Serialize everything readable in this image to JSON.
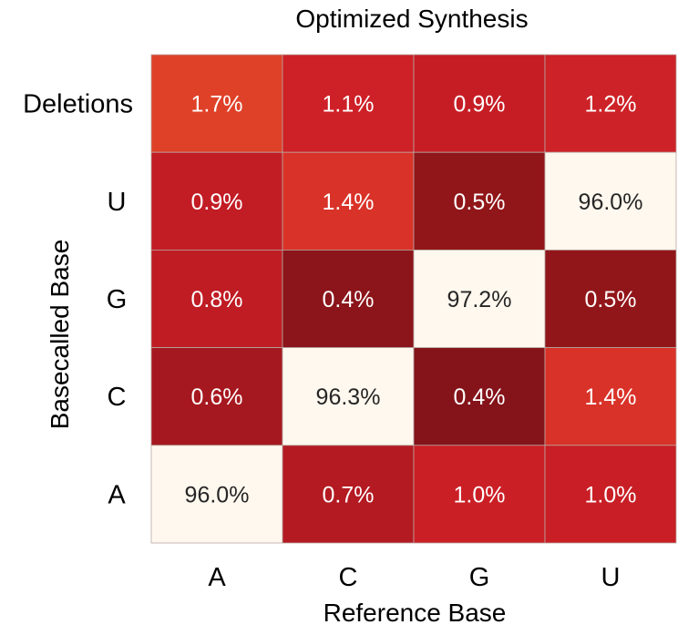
{
  "chart_data": {
    "type": "heatmap",
    "title": "Optimized Synthesis",
    "xlabel": "Reference Base",
    "ylabel": "Basecalled Base",
    "x_categories": [
      "A",
      "C",
      "G",
      "U"
    ],
    "y_categories": [
      "Deletions",
      "U",
      "G",
      "C",
      "A"
    ],
    "values": [
      [
        1.7,
        1.1,
        0.9,
        1.2
      ],
      [
        0.9,
        1.4,
        0.5,
        96.0
      ],
      [
        0.8,
        0.4,
        97.2,
        0.5
      ],
      [
        0.6,
        96.3,
        0.4,
        1.4
      ],
      [
        96.0,
        0.7,
        1.0,
        1.0
      ]
    ],
    "value_labels": [
      [
        "1.7%",
        "1.1%",
        "0.9%",
        "1.2%"
      ],
      [
        "0.9%",
        "1.4%",
        "0.5%",
        "96.0%"
      ],
      [
        "0.8%",
        "0.4%",
        "97.2%",
        "0.5%"
      ],
      [
        "0.6%",
        "96.3%",
        "0.4%",
        "1.4%"
      ],
      [
        "96.0%",
        "0.7%",
        "1.0%",
        "1.0%"
      ]
    ],
    "cell_colors": [
      [
        "#df4128",
        "#cd2127",
        "#c61d25",
        "#cd2227"
      ],
      [
        "#c21c25",
        "#d93228",
        "#911619",
        "#fff8ee"
      ],
      [
        "#bf1c24",
        "#8b151a",
        "#fff8ee",
        "#911619"
      ],
      [
        "#a6181f",
        "#fff8ee",
        "#84131a",
        "#d93228"
      ],
      [
        "#fff8ee",
        "#b41a22",
        "#cb1f26",
        "#c91e25"
      ]
    ],
    "colorbar": false,
    "grid": true
  }
}
